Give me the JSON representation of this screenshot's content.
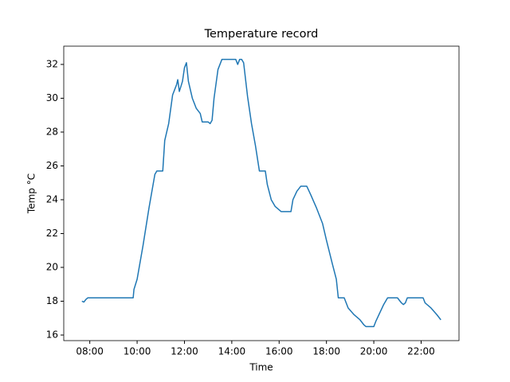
{
  "chart_data": {
    "type": "line",
    "title": "Temperature record",
    "x_label": "Time",
    "y_label": "Temp °C",
    "x": [
      "07:40",
      "07:45",
      "07:50",
      "07:55",
      "09:50",
      "09:52",
      "10:00",
      "10:15",
      "10:30",
      "10:45",
      "10:50",
      "11:05",
      "11:10",
      "11:20",
      "11:30",
      "11:40",
      "11:43",
      "11:47",
      "11:55",
      "12:00",
      "12:05",
      "12:10",
      "12:20",
      "12:30",
      "12:40",
      "12:45",
      "13:00",
      "13:05",
      "13:10",
      "13:15",
      "13:25",
      "13:35",
      "14:10",
      "14:15",
      "14:20",
      "14:25",
      "14:30",
      "14:40",
      "14:50",
      "15:00",
      "15:10",
      "15:25",
      "15:30",
      "15:40",
      "15:50",
      "16:00",
      "16:05",
      "16:30",
      "16:35",
      "16:45",
      "16:55",
      "17:10",
      "17:20",
      "17:35",
      "17:50",
      "18:00",
      "18:15",
      "18:25",
      "18:30",
      "18:45",
      "18:55",
      "19:10",
      "19:25",
      "19:35",
      "19:40",
      "20:00",
      "20:05",
      "20:25",
      "20:35",
      "21:00",
      "21:10",
      "21:15",
      "21:20",
      "21:25",
      "22:05",
      "22:10",
      "22:25",
      "22:40",
      "22:50"
    ],
    "series": [
      {
        "color": "#1f77b4",
        "values": [
          18.0,
          17.95,
          18.1,
          18.2,
          18.2,
          18.7,
          19.3,
          21.3,
          23.5,
          25.5,
          25.7,
          25.7,
          27.5,
          28.5,
          30.2,
          30.8,
          31.1,
          30.4,
          31.0,
          31.8,
          32.1,
          31.0,
          30.0,
          29.4,
          29.1,
          28.6,
          28.6,
          28.5,
          28.7,
          30.0,
          31.7,
          32.3,
          32.3,
          32.0,
          32.3,
          32.3,
          32.1,
          30.1,
          28.5,
          27.2,
          25.7,
          25.7,
          24.9,
          24.0,
          23.6,
          23.4,
          23.3,
          23.3,
          24.0,
          24.5,
          24.8,
          24.8,
          24.3,
          23.5,
          22.6,
          21.6,
          20.2,
          19.3,
          18.2,
          18.2,
          17.6,
          17.2,
          16.9,
          16.6,
          16.5,
          16.5,
          16.8,
          17.8,
          18.2,
          18.2,
          17.9,
          17.8,
          17.9,
          18.2,
          18.2,
          17.9,
          17.6,
          17.2,
          16.9
        ]
      }
    ],
    "xlim": [
      "06:54",
      "23:36"
    ],
    "xticks": [
      "08:00",
      "10:00",
      "12:00",
      "14:00",
      "16:00",
      "18:00",
      "20:00",
      "22:00"
    ],
    "ylim": [
      15.67,
      33.08
    ],
    "yticks": [
      16,
      18,
      20,
      22,
      24,
      26,
      28,
      30,
      32
    ],
    "grid": false
  }
}
